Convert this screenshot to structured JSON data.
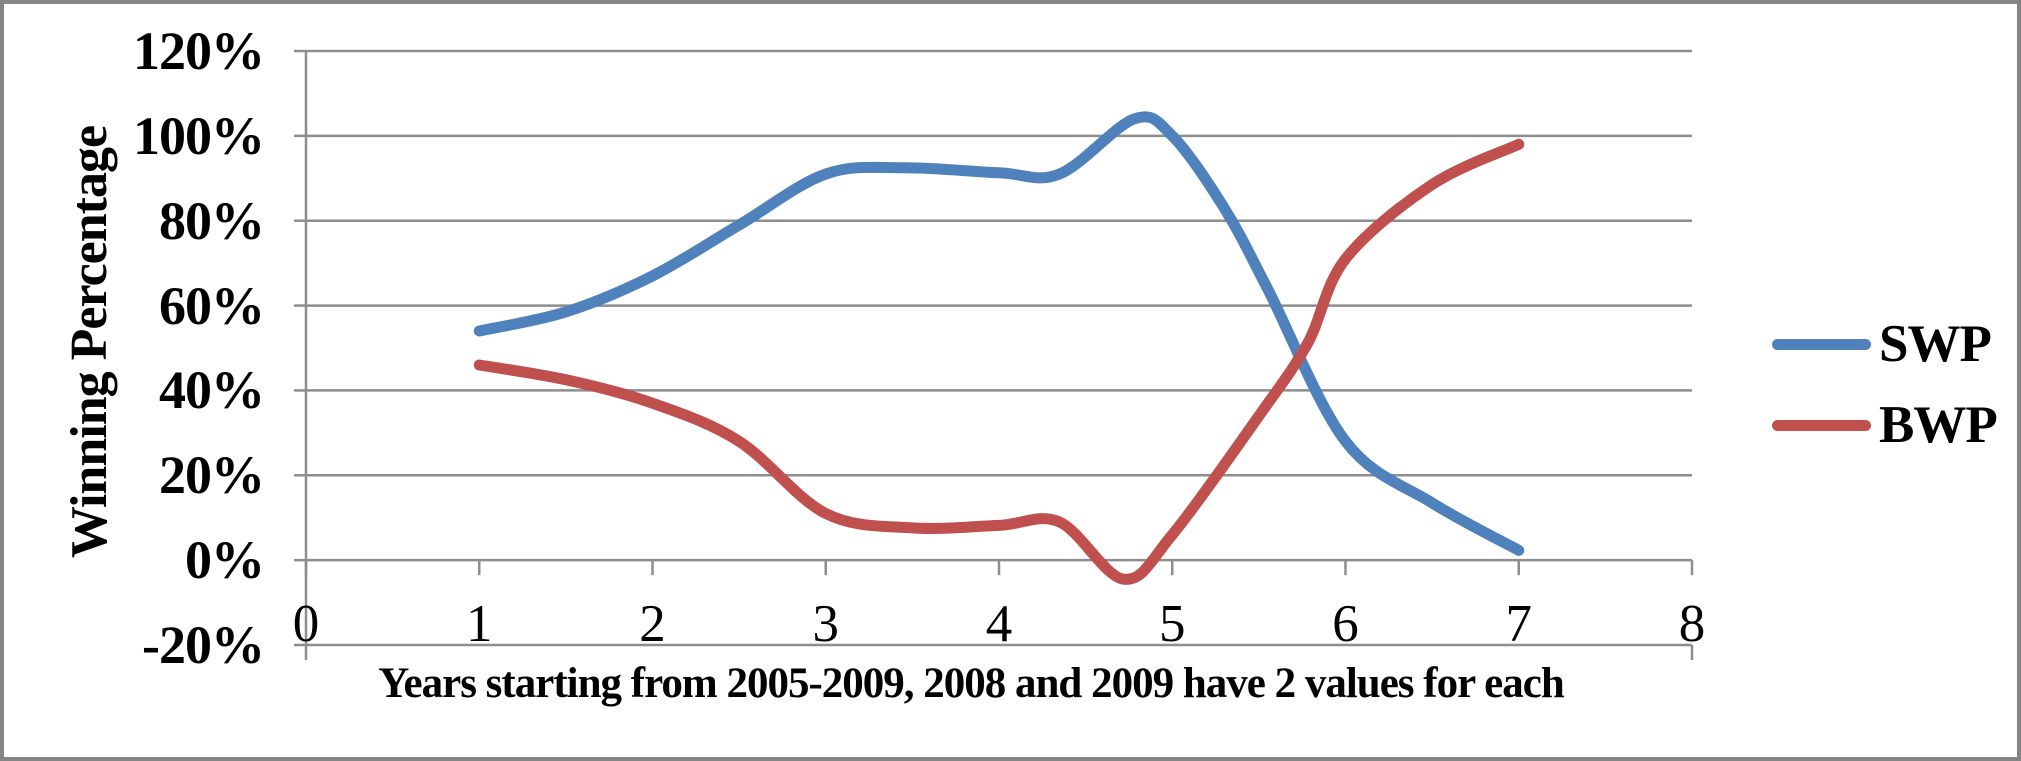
{
  "chart_data": {
    "type": "line",
    "smoothed": true,
    "title": "",
    "xlabel": "Years starting from 2005-2009, 2008 and 2009 have 2 values for each",
    "ylabel": "Winning Percentage",
    "x": [
      1,
      2,
      3,
      4,
      5,
      6,
      7
    ],
    "series": [
      {
        "name": "SWP",
        "color": "#4F81BD",
        "values": [
          54,
          67,
          91,
          91,
          100,
          28,
          2
        ]
      },
      {
        "name": "BWP",
        "color": "#C0504D",
        "values": [
          46,
          37,
          11,
          8,
          6,
          71,
          98
        ]
      }
    ],
    "curve_samples": {
      "SWP": [
        [
          1,
          54
        ],
        [
          1.5,
          58.5
        ],
        [
          2,
          67
        ],
        [
          2.5,
          79
        ],
        [
          3,
          91
        ],
        [
          3.45,
          92.5
        ],
        [
          4,
          91.3
        ],
        [
          4.35,
          91
        ],
        [
          4.78,
          104
        ],
        [
          5,
          100
        ],
        [
          5.3,
          83
        ],
        [
          5.55,
          64
        ],
        [
          6,
          28
        ],
        [
          6.5,
          13.5
        ],
        [
          7,
          2.3
        ]
      ],
      "BWP": [
        [
          1,
          46
        ],
        [
          1.5,
          42.5
        ],
        [
          2,
          37
        ],
        [
          2.5,
          28
        ],
        [
          3,
          11
        ],
        [
          3.5,
          7.6
        ],
        [
          4,
          8.2
        ],
        [
          4.35,
          9
        ],
        [
          4.72,
          -4.5
        ],
        [
          5,
          6
        ],
        [
          5.5,
          34
        ],
        [
          5.78,
          51
        ],
        [
          6,
          71
        ],
        [
          6.5,
          88.5
        ],
        [
          7,
          98
        ]
      ]
    },
    "x_axis": {
      "min": 0,
      "max": 8,
      "tick_labels": [
        "0",
        "1",
        "2",
        "3",
        "4",
        "5",
        "6",
        "7",
        "8"
      ]
    },
    "y_axis": {
      "min": -20,
      "max": 120,
      "tick_labels": [
        "-20%",
        "0%",
        "20%",
        "40%",
        "60%",
        "80%",
        "100%",
        "120%"
      ]
    },
    "legend": {
      "position": "right",
      "entries": [
        "SWP",
        "BWP"
      ]
    },
    "gridlines": true
  },
  "colors": {
    "swp": "#4F81BD",
    "bwp": "#C0504D",
    "gridline": "#8E8E8E",
    "axis": "#8E8E8E",
    "border": "#858585",
    "text": "#000000"
  }
}
